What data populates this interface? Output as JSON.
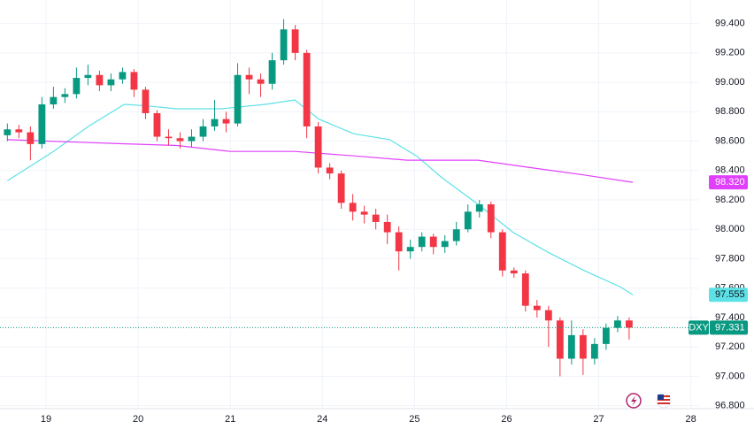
{
  "chart_data": {
    "type": "candlestick",
    "x": [
      -0.42,
      -0.295,
      -0.17,
      -0.045,
      0.08,
      0.205,
      0.33,
      0.455,
      0.58,
      0.705,
      0.83,
      0.955,
      1.08,
      1.205,
      1.33,
      1.455,
      1.58,
      1.705,
      1.83,
      1.955,
      2.08,
      2.205,
      2.33,
      2.455,
      2.58,
      2.705,
      2.83,
      2.955,
      3.08,
      3.205,
      3.33,
      3.455,
      3.58,
      3.705,
      3.83,
      3.955,
      4.08,
      4.205,
      4.33,
      4.455,
      4.58,
      4.705,
      4.83,
      4.955,
      5.08,
      5.205,
      5.33,
      5.455,
      5.58,
      5.705,
      5.83,
      5.955,
      6.08,
      6.205,
      6.33
    ],
    "open": [
      98.64,
      98.68,
      98.66,
      98.58,
      98.85,
      98.9,
      98.92,
      99.03,
      99.05,
      98.98,
      99.02,
      99.07,
      98.95,
      98.79,
      98.63,
      98.62,
      98.6,
      98.63,
      98.7,
      98.75,
      98.72,
      99.05,
      99.02,
      98.99,
      99.15,
      99.36,
      99.2,
      98.7,
      98.42,
      98.38,
      98.18,
      98.12,
      98.1,
      98.05,
      97.98,
      97.85,
      97.88,
      97.95,
      97.88,
      97.92,
      98.0,
      98.12,
      98.17,
      97.98,
      97.72,
      97.7,
      97.48,
      97.45,
      97.38,
      97.12,
      97.28,
      97.12,
      97.22,
      97.33,
      97.38
    ],
    "high": [
      98.72,
      98.71,
      98.7,
      98.9,
      98.97,
      98.96,
      99.1,
      99.12,
      99.08,
      99.06,
      99.1,
      99.09,
      98.97,
      98.81,
      98.68,
      98.66,
      98.68,
      98.75,
      98.88,
      98.8,
      99.13,
      99.1,
      99.06,
      99.2,
      99.43,
      99.39,
      99.22,
      98.73,
      98.45,
      98.4,
      98.24,
      98.16,
      98.14,
      98.1,
      98.02,
      97.93,
      97.98,
      97.97,
      97.96,
      98.05,
      98.17,
      98.2,
      98.19,
      98.0,
      97.74,
      97.72,
      97.52,
      97.48,
      97.4,
      97.38,
      97.32,
      97.26,
      97.36,
      97.41,
      97.4
    ],
    "low": [
      98.6,
      98.62,
      98.47,
      98.55,
      98.82,
      98.86,
      98.89,
      98.98,
      98.94,
      98.94,
      98.99,
      98.9,
      98.75,
      98.6,
      98.57,
      98.55,
      98.56,
      98.6,
      98.67,
      98.66,
      98.7,
      98.92,
      98.9,
      98.95,
      99.12,
      99.15,
      98.62,
      98.38,
      98.34,
      98.14,
      98.06,
      98.04,
      98.0,
      97.9,
      97.72,
      97.8,
      97.85,
      97.83,
      97.84,
      97.89,
      97.98,
      98.08,
      97.94,
      97.68,
      97.67,
      97.44,
      97.4,
      97.2,
      97.0,
      97.08,
      97.01,
      97.08,
      97.18,
      97.3,
      97.25
    ],
    "close": [
      98.68,
      98.66,
      98.58,
      98.85,
      98.9,
      98.92,
      99.03,
      99.05,
      98.98,
      99.02,
      99.07,
      98.95,
      98.79,
      98.63,
      98.62,
      98.6,
      98.63,
      98.7,
      98.75,
      98.72,
      99.05,
      99.02,
      98.99,
      99.15,
      99.36,
      99.2,
      98.7,
      98.42,
      98.38,
      98.18,
      98.12,
      98.1,
      98.05,
      97.98,
      97.85,
      97.88,
      97.95,
      97.88,
      97.92,
      98.0,
      98.12,
      98.17,
      97.98,
      97.72,
      97.7,
      97.48,
      97.45,
      97.38,
      97.12,
      97.28,
      97.12,
      97.22,
      97.33,
      97.38,
      97.331
    ],
    "up_color": "#089981",
    "down_color": "#f23645",
    "series": [
      {
        "color": "#5ce1e6",
        "x": [
          -0.42,
          0.08,
          0.46,
          0.85,
          1.09,
          1.42,
          1.9,
          2.38,
          2.7,
          2.96,
          3.34,
          3.73,
          4.02,
          4.3,
          4.69,
          5.07,
          5.46,
          5.84,
          6.23,
          6.37
        ],
        "values": [
          98.33,
          98.53,
          98.7,
          98.85,
          98.84,
          98.82,
          98.82,
          98.85,
          98.88,
          98.75,
          98.65,
          98.61,
          98.5,
          98.35,
          98.17,
          97.98,
          97.84,
          97.72,
          97.61,
          97.555
        ],
        "last": {
          "value": 97.555,
          "label": "97.555"
        }
      },
      {
        "color": "#e040fb",
        "x": [
          -0.42,
          0.46,
          1.42,
          2.0,
          2.7,
          3.34,
          3.92,
          4.69,
          5.26,
          5.84,
          6.37
        ],
        "values": [
          98.61,
          98.59,
          98.57,
          98.53,
          98.53,
          98.5,
          98.47,
          98.47,
          98.42,
          98.37,
          98.32
        ],
        "last": {
          "value": 98.32,
          "label": "98.320"
        }
      }
    ],
    "last_price": {
      "symbol": "DXY",
      "value": 97.331
    },
    "xlim": [
      -0.5,
      7.09
    ],
    "xticks": [
      {
        "value": 0,
        "label": "19"
      },
      {
        "value": 1,
        "label": "20"
      },
      {
        "value": 2,
        "label": "21"
      },
      {
        "value": 3,
        "label": "24"
      },
      {
        "value": 4,
        "label": "25"
      },
      {
        "value": 5,
        "label": "26"
      },
      {
        "value": 6,
        "label": "27"
      },
      {
        "value": 7,
        "label": "28"
      }
    ],
    "ylim": [
      96.78,
      99.56
    ],
    "yticks": [
      {
        "value": 96.8,
        "label": "96.800"
      },
      {
        "value": 97.0,
        "label": "97.000"
      },
      {
        "value": 97.2,
        "label": "97.200"
      },
      {
        "value": 97.4,
        "label": "97.400"
      },
      {
        "value": 97.6,
        "label": "97.600"
      },
      {
        "value": 97.8,
        "label": "97.800"
      },
      {
        "value": 98.0,
        "label": "98.000"
      },
      {
        "value": 98.2,
        "label": "98.200"
      },
      {
        "value": 98.4,
        "label": "98.400"
      },
      {
        "value": 98.6,
        "label": "98.600"
      },
      {
        "value": 98.8,
        "label": "98.800"
      },
      {
        "value": 99.0,
        "label": "99.000"
      },
      {
        "value": 99.2,
        "label": "99.200"
      },
      {
        "value": 99.4,
        "label": "99.400"
      }
    ],
    "grid": true
  }
}
